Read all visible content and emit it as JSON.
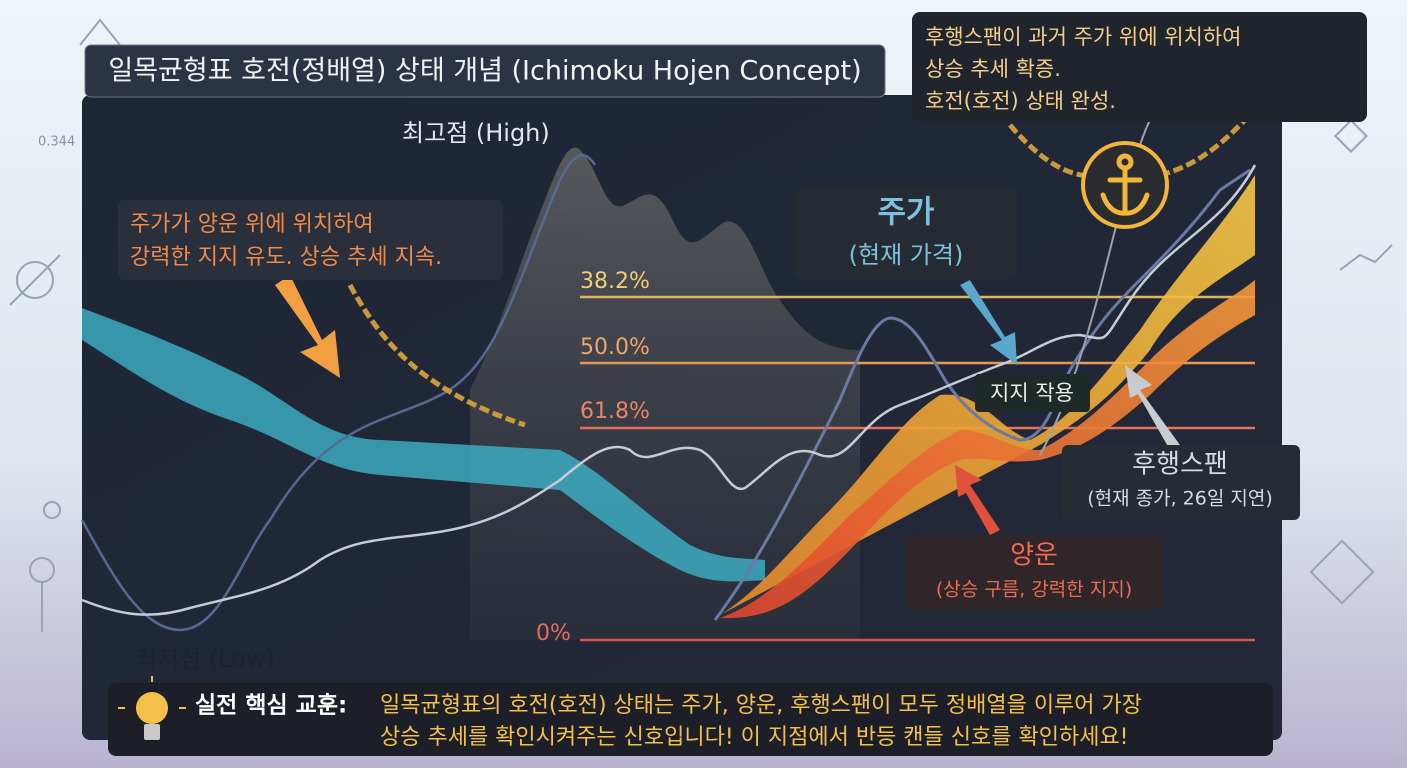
{
  "header": {
    "title": "일목균형표 호전(정배열) 상태 개념 (Ichimoku Hojen Concept)",
    "side_number": "0.344"
  },
  "labels": {
    "high": "최고점 (High)",
    "low": "최저점 (Low)"
  },
  "fib_levels": [
    "38.2%",
    "50.0%",
    "61.8%",
    "0%"
  ],
  "callouts": {
    "left": [
      "주가가 양운 위에 위치하여",
      "강력한 지지 유도. 상승 추세 지속."
    ],
    "top_right": [
      "후행스팬이 과거 주가 위에 위치하여",
      "상승 추세 확증.",
      "호전(호전) 상태 완성."
    ],
    "price": {
      "title": "주가",
      "subtitle": "(현재 가격)"
    },
    "support": "지지 작용",
    "lagging": {
      "title": "후행스팬",
      "subtitle": "(현재 종가, 26일 지연)"
    },
    "cloud": {
      "title": "양운",
      "subtitle": "(상승 구름, 강력한 지지)"
    }
  },
  "lesson": {
    "label": "실전 핵심 교훈:",
    "lines": [
      "일목균형표의 호전(호전) 상태는 주가, 양운, 후행스팬이 모두 정배열을 이루어 가장",
      "상승 추세를 확인시켜주는 신호입니다! 이 지점에서 반등 캔들 신호를 확인하세요!"
    ]
  }
}
